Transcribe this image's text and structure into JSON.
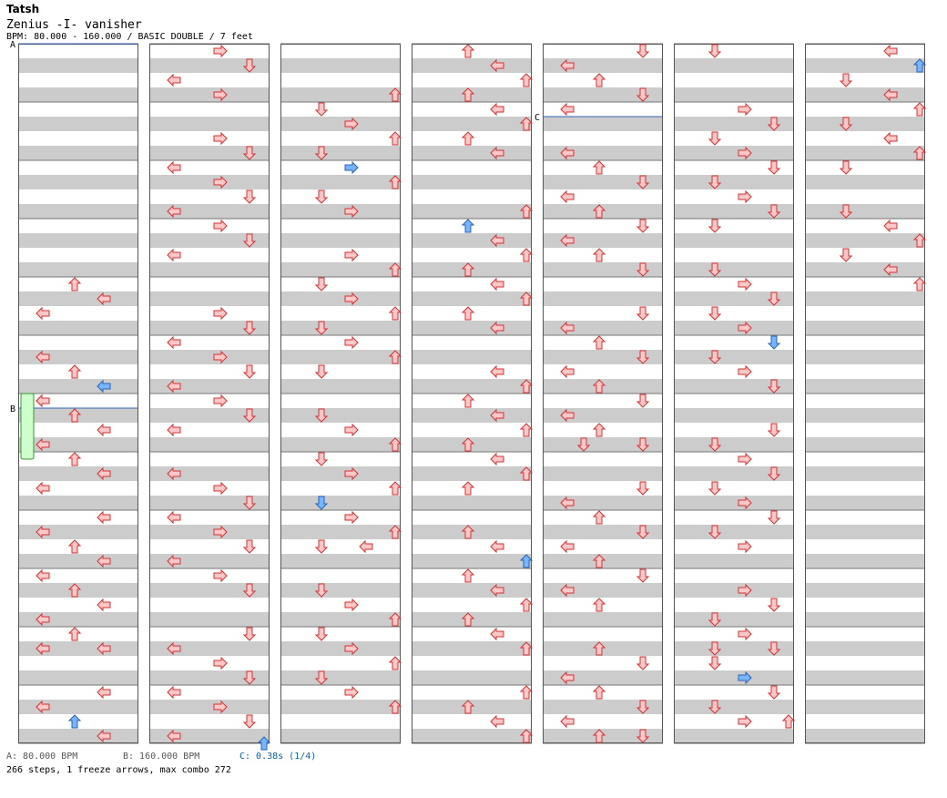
{
  "header": {
    "artist": "Tatsh",
    "title": "Zenius -I- vanisher",
    "info": "BPM: 80.000 - 160.000 / BASIC DOUBLE / 7 feet"
  },
  "markers": {
    "A": "A",
    "B": "B",
    "C": "C"
  },
  "legend": {
    "a": "A: 80.000 BPM",
    "b": "B: 160.000 BPM",
    "c": "C: 0.38s (1/4)"
  },
  "summary": "266 steps, 1 freeze arrows, max combo 272",
  "colors": {
    "stripe": "#cccccc",
    "panel_border": "#555555",
    "arrow_fill": "#ffc8c8",
    "arrow_stroke": "#d23232",
    "blue_fill": "#78b4ff",
    "blue_stroke": "#2864b4",
    "freeze_fill": "#ccffcc",
    "freeze_stroke": "#3c963c",
    "bpm_line": "#3264b4"
  }
}
